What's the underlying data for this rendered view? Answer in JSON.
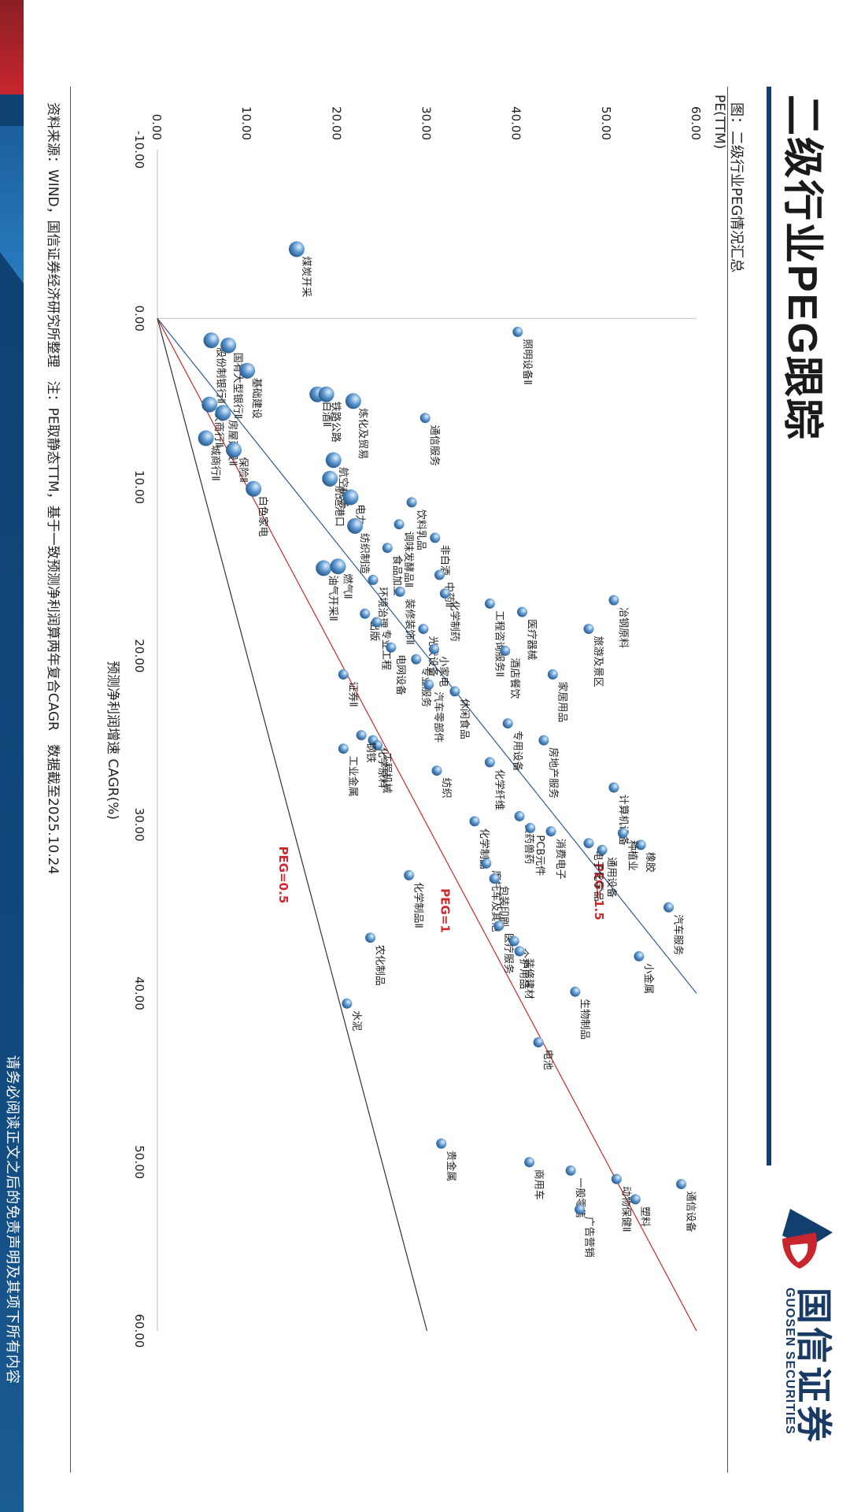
{
  "header": {
    "title": "二级行业PEG跟踪",
    "logo_cn": "国信证券",
    "logo_en": "GUOSEN SECURITIES",
    "figure_label": "图：二级行业PEG情况汇总"
  },
  "footer": {
    "source": "资料来源：WIND，国信证券经济研究所整理　注：PE取静态TTM，基于一致预测净利润算两年复合CAGR　数据截至2025.10.24",
    "disclaimer": "请务必阅读正文之后的免责声明及其项下所有内容"
  },
  "colors": {
    "brand_blue": "#123f6e",
    "brand_red": "#c7262e",
    "point": "#5b97cf"
  },
  "chart_data": {
    "type": "scatter",
    "xlabel": "预测净利润增速 CAGR(%)",
    "ylabel": "PE(TTM)",
    "xlim": [
      -10,
      60
    ],
    "ylim": [
      0,
      60
    ],
    "xticks": [
      "-10.00",
      "0.00",
      "10.00",
      "20.00",
      "30.00",
      "40.00",
      "50.00",
      "60.00"
    ],
    "yticks": [
      "0.00",
      "10.00",
      "20.00",
      "30.00",
      "40.00",
      "50.00",
      "60.00"
    ],
    "peg_lines": [
      {
        "label": "PEG=1.5",
        "slope": 1.5,
        "color": "#2e5f9e"
      },
      {
        "label": "PEG=1",
        "slope": 1.0,
        "color": "#d0262e"
      },
      {
        "label": "PEG=0.5",
        "slope": 0.5,
        "color": "#333333"
      }
    ],
    "points": [
      {
        "name": "煤炭开采",
        "x": -4.1,
        "y": 15.5
      },
      {
        "name": "股份制银行Ⅱ",
        "x": 1.3,
        "y": 6.0
      },
      {
        "name": "国有大型银行Ⅱ",
        "x": 1.6,
        "y": 7.9
      },
      {
        "name": "照明设备Ⅱ",
        "x": 0.8,
        "y": 40.1
      },
      {
        "name": "白酒Ⅱ",
        "x": 4.5,
        "y": 17.8
      },
      {
        "name": "基础建设",
        "x": 3.1,
        "y": 10.0
      },
      {
        "name": "农商行Ⅱ",
        "x": 5.1,
        "y": 5.8
      },
      {
        "name": "房屋建设Ⅱ",
        "x": 5.6,
        "y": 7.3
      },
      {
        "name": "城商行Ⅱ",
        "x": 7.1,
        "y": 5.4
      },
      {
        "name": "保险Ⅱ",
        "x": 7.8,
        "y": 8.5
      },
      {
        "name": "铁路公路",
        "x": 4.5,
        "y": 18.8
      },
      {
        "name": "炼化及贸易",
        "x": 4.9,
        "y": 21.8
      },
      {
        "name": "通信服务",
        "x": 5.9,
        "y": 29.8
      },
      {
        "name": "白色家电",
        "x": 10.1,
        "y": 10.7
      },
      {
        "name": "航运港口",
        "x": 9.5,
        "y": 19.2
      },
      {
        "name": "航空机场",
        "x": 8.4,
        "y": 19.6
      },
      {
        "name": "电力",
        "x": 10.6,
        "y": 21.5
      },
      {
        "name": "饮料乳品",
        "x": 10.9,
        "y": 28.3
      },
      {
        "name": "调味发酵品Ⅱ",
        "x": 12.2,
        "y": 26.9
      },
      {
        "name": "纺织制造",
        "x": 12.3,
        "y": 22.0
      },
      {
        "name": "食品加工",
        "x": 13.6,
        "y": 25.6
      },
      {
        "name": "非白酒",
        "x": 13.0,
        "y": 30.9
      },
      {
        "name": "油气开采Ⅱ",
        "x": 14.8,
        "y": 18.5
      },
      {
        "name": "燃气Ⅱ",
        "x": 14.7,
        "y": 20.1
      },
      {
        "name": "环境治理",
        "x": 15.5,
        "y": 24.0
      },
      {
        "name": "中药Ⅱ",
        "x": 15.2,
        "y": 31.4
      },
      {
        "name": "装修装饰Ⅱ",
        "x": 16.2,
        "y": 27.0
      },
      {
        "name": "化学制药",
        "x": 16.3,
        "y": 32.0
      },
      {
        "name": "冶钢原料",
        "x": 16.7,
        "y": 50.8
      },
      {
        "name": "医疗器械",
        "x": 17.4,
        "y": 40.6
      },
      {
        "name": "工程咨询服务Ⅱ",
        "x": 16.9,
        "y": 37.0
      },
      {
        "name": "旅游及景区",
        "x": 18.4,
        "y": 48.0
      },
      {
        "name": "出版",
        "x": 17.5,
        "y": 23.1
      },
      {
        "name": "专业工程",
        "x": 18.0,
        "y": 24.4
      },
      {
        "name": "电网设备",
        "x": 19.5,
        "y": 26.0
      },
      {
        "name": "酒店餐饮",
        "x": 19.7,
        "y": 38.7
      },
      {
        "name": "光伏设备",
        "x": 18.4,
        "y": 29.6
      },
      {
        "name": "专业服务",
        "x": 20.2,
        "y": 28.8
      },
      {
        "name": "证券Ⅱ",
        "x": 21.1,
        "y": 20.7
      },
      {
        "name": "小家电",
        "x": 19.6,
        "y": 30.8
      },
      {
        "name": "家居用品",
        "x": 21.1,
        "y": 44.0
      },
      {
        "name": "休闲食品",
        "x": 22.1,
        "y": 33.1
      },
      {
        "name": "汽车零部件",
        "x": 21.7,
        "y": 30.2
      },
      {
        "name": "专用设备",
        "x": 24.0,
        "y": 39.0
      },
      {
        "name": "房地产服务",
        "x": 25.0,
        "y": 43.0
      },
      {
        "name": "化学纤维",
        "x": 26.3,
        "y": 37.0
      },
      {
        "name": "工业金属",
        "x": 25.5,
        "y": 20.7
      },
      {
        "name": "化学原料",
        "x": 25.0,
        "y": 24.0
      },
      {
        "name": "工程机械",
        "x": 25.3,
        "y": 24.5
      },
      {
        "name": "钢铁",
        "x": 24.7,
        "y": 22.7
      },
      {
        "name": "纺织",
        "x": 26.8,
        "y": 31.1
      },
      {
        "name": "计算机设备",
        "x": 27.8,
        "y": 50.8
      },
      {
        "name": "化学制品",
        "x": 29.8,
        "y": 35.3
      },
      {
        "name": "农药兽药",
        "x": 29.5,
        "y": 40.3
      },
      {
        "name": "消费电子",
        "x": 30.4,
        "y": 43.8
      },
      {
        "name": "PCB元件",
        "x": 30.2,
        "y": 41.5
      },
      {
        "name": "橡胶",
        "x": 31.2,
        "y": 53.8
      },
      {
        "name": "电子化学品",
        "x": 31.1,
        "y": 48.0
      },
      {
        "name": "通用设备",
        "x": 31.5,
        "y": 49.5
      },
      {
        "name": "种植业",
        "x": 30.5,
        "y": 51.8
      },
      {
        "name": "摩托车及其他",
        "x": 32.3,
        "y": 36.6
      },
      {
        "name": "包装印刷",
        "x": 33.2,
        "y": 37.5
      },
      {
        "name": "化学制品Ⅱ",
        "x": 33.0,
        "y": 28.0
      },
      {
        "name": "汽车服务",
        "x": 34.9,
        "y": 56.9
      },
      {
        "name": "医疗服务",
        "x": 36.0,
        "y": 38.0
      },
      {
        "name": "个护用品",
        "x": 36.9,
        "y": 39.7
      },
      {
        "name": "装修建材",
        "x": 37.5,
        "y": 40.3
      },
      {
        "name": "农化制品",
        "x": 36.7,
        "y": 23.7
      },
      {
        "name": "小金属",
        "x": 37.8,
        "y": 53.6
      },
      {
        "name": "生物制品",
        "x": 39.9,
        "y": 46.5
      },
      {
        "name": "水泥",
        "x": 40.6,
        "y": 21.1
      },
      {
        "name": "电池",
        "x": 42.9,
        "y": 42.4
      },
      {
        "name": "商用车",
        "x": 50.0,
        "y": 41.4
      },
      {
        "name": "动物保健Ⅱ",
        "x": 51.0,
        "y": 51.1
      },
      {
        "name": "贵金属",
        "x": 48.9,
        "y": 31.6
      },
      {
        "name": "一般零售",
        "x": 50.5,
        "y": 46.0
      },
      {
        "name": "通信设备",
        "x": 51.3,
        "y": 58.3
      },
      {
        "name": "塑料",
        "x": 52.2,
        "y": 53.2
      },
      {
        "name": "广告营销",
        "x": 52.8,
        "y": 47.0
      }
    ]
  }
}
